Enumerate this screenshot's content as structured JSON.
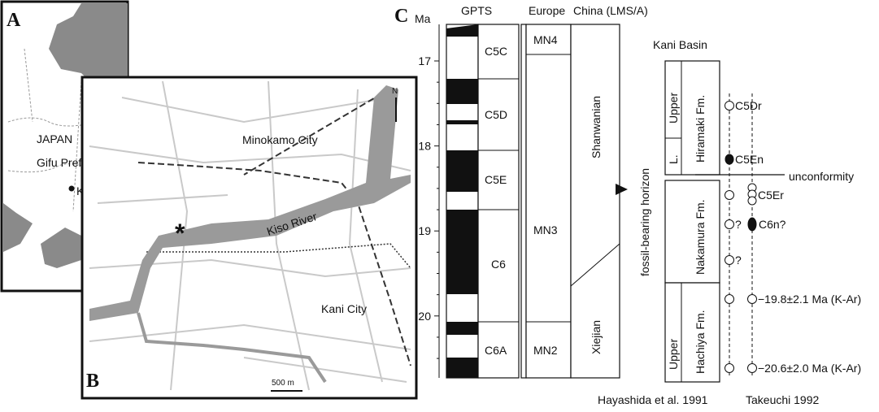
{
  "panel_a": {
    "label": "A",
    "country": "JAPAN",
    "prefecture": "Gifu Pref.",
    "town": "Kani"
  },
  "panel_b": {
    "label": "B",
    "north": "N",
    "city_north": "Minokamo City",
    "city_south": "Kani City",
    "river": "Kiso River",
    "scale": "500 m"
  },
  "panel_c": {
    "label": "C",
    "axis_unit": "Ma",
    "ticks": [
      17,
      18,
      19,
      20
    ],
    "columns": [
      "GPTS",
      "Europe",
      "China (LMS/A)"
    ],
    "chrons": [
      "C5C",
      "C5D",
      "C5E",
      "C6",
      "C6A"
    ],
    "europe_zones": [
      "MN4",
      "MN3",
      "MN2"
    ],
    "china_stages": [
      "Shanwanian",
      "Xiejian"
    ],
    "basin": "Kani Basin",
    "horizon": "fossil-bearing horizon",
    "hiramaki": {
      "name": "Hiramaki Fm.",
      "upper": "Upper",
      "lower": "L."
    },
    "nakamura": {
      "name": "Nakamura Fm."
    },
    "hachiya": {
      "name": "Hachiya Fm.",
      "upper": "Upper"
    },
    "unconformity": "unconformity",
    "sample_labels": [
      "C5Dr",
      "C5En",
      "C5Er",
      "?",
      "C6n?",
      "?",
      "−19.8±2.1 Ma (K-Ar)",
      "−20.6±2.0 Ma (K-Ar)"
    ],
    "sources": [
      "Hayashida et al. 1991",
      "Takeuchi 1992"
    ]
  }
}
